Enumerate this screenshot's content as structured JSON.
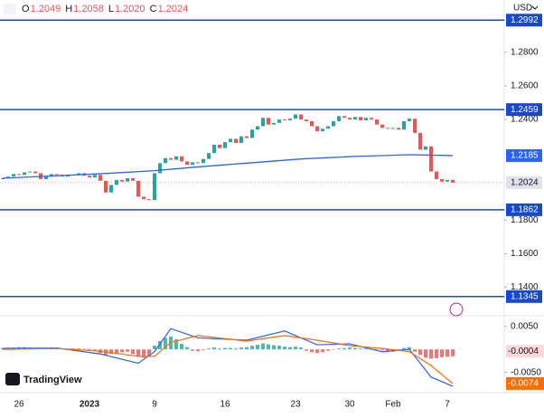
{
  "header": {
    "ohlc": [
      {
        "key": "O",
        "value": "1.2049"
      },
      {
        "key": "H",
        "value": "1.2058"
      },
      {
        "key": "L",
        "value": "1.2020"
      },
      {
        "key": "C",
        "value": "1.2024"
      }
    ],
    "currency": "USD",
    "logo": "TradingView"
  },
  "chart_data": {
    "type": "candlestick",
    "up_color": "#26a69a",
    "down_color": "#ef5350",
    "categories": [
      null,
      null,
      null,
      "26",
      null,
      null,
      null,
      null,
      null,
      null,
      null,
      null,
      null,
      null,
      null,
      null,
      "2023",
      null,
      null,
      null,
      null,
      null,
      null,
      null,
      null,
      null,
      null,
      null,
      "9",
      null,
      null,
      null,
      null,
      null,
      null,
      null,
      null,
      null,
      null,
      null,
      null,
      "16",
      null,
      null,
      null,
      null,
      null,
      null,
      null,
      null,
      null,
      null,
      null,
      null,
      "23",
      null,
      null,
      null,
      null,
      null,
      null,
      null,
      null,
      null,
      "30",
      null,
      null,
      null,
      null,
      null,
      null,
      null,
      "Feb",
      null,
      null,
      null,
      null,
      null,
      null,
      null,
      null,
      null,
      "7",
      null
    ],
    "closes": [
      1.205,
      1.206,
      1.2075,
      1.207,
      1.2085,
      1.209,
      1.208,
      1.2045,
      1.206,
      1.2075,
      1.207,
      1.206,
      1.2072,
      1.2068,
      1.208,
      1.2065,
      1.2055,
      1.207,
      1.2035,
      1.1965,
      1.201,
      1.204,
      1.203,
      1.205,
      1.2035,
      1.194,
      1.1925,
      1.192,
      1.208,
      1.214,
      1.217,
      1.216,
      1.218,
      1.215,
      1.213,
      1.2145,
      1.214,
      1.2165,
      1.22,
      1.225,
      1.223,
      1.2265,
      1.2285,
      1.226,
      1.23,
      1.229,
      1.234,
      1.236,
      1.241,
      1.237,
      1.238,
      1.24,
      1.2395,
      1.2405,
      1.243,
      1.24,
      1.239,
      1.236,
      1.233,
      1.2345,
      1.236,
      1.239,
      1.242,
      1.241,
      1.24,
      1.2415,
      1.2395,
      1.241,
      1.24,
      1.237,
      1.235,
      1.2345,
      1.235,
      1.234,
      1.239,
      1.2405,
      1.232,
      1.222,
      1.224,
      1.209,
      1.2045,
      1.203,
      1.204,
      1.2024
    ],
    "ylim": [
      1.1236,
      1.3112
    ],
    "yticks": [
      {
        "value": 1.28,
        "label": "1.2800"
      },
      {
        "value": 1.26,
        "label": "1.2600"
      },
      {
        "value": 1.24,
        "label": "1.2400"
      },
      {
        "value": 1.18,
        "label": "1.1800"
      },
      {
        "value": 1.16,
        "label": "1.1600"
      },
      {
        "value": 1.14,
        "label": "1.1400"
      }
    ],
    "levels": {
      "color": "#1848cc",
      "values": [
        {
          "value": 1.2992,
          "label": "1.2992"
        },
        {
          "value": 1.2459,
          "label": "1.2459"
        },
        {
          "value": 1.1862,
          "label": "1.1862"
        },
        {
          "value": 1.1345,
          "label": "1.1345"
        }
      ]
    },
    "last_price": {
      "value": 1.2024,
      "label": "1.2024"
    },
    "ma": {
      "color": "#2962ff",
      "x": [
        0,
        10,
        20,
        28,
        35,
        45,
        55,
        65,
        75,
        83
      ],
      "values": [
        1.205,
        1.2065,
        1.208,
        1.2095,
        1.2115,
        1.214,
        1.2165,
        1.218,
        1.219,
        1.2185
      ],
      "last": {
        "value": 1.2185,
        "label": "1.2185"
      }
    },
    "macd": {
      "ylim": [
        -0.009,
        0.0071
      ],
      "yticks": [
        {
          "value": 0.005,
          "label": "0.0050"
        },
        {
          "value": -0.005,
          "label": "-0.0050"
        }
      ],
      "histogram": [
        0.0003,
        0.0004,
        0.0004,
        0.0005,
        0.0005,
        0.0004,
        0.0003,
        0.0002,
        0.0003,
        0.0004,
        0.0003,
        0.0001,
        0.0001,
        0.0002,
        0.0002,
        0.0001,
        -0.0002,
        -0.0004,
        -0.0008,
        -0.0012,
        -0.001,
        -0.0008,
        -0.0006,
        -0.0005,
        -0.001,
        -0.0016,
        -0.0018,
        -0.0015,
        0.0008,
        0.0018,
        0.0025,
        0.0028,
        0.0022,
        0.0012,
        0.0005,
        -0.0003,
        -0.0004,
        -0.0002,
        0.0002,
        0.0004,
        0.0002,
        0.0003,
        0.0003,
        0.0002,
        0.0004,
        0.0005,
        0.0008,
        0.001,
        0.0013,
        0.0011,
        0.0009,
        0.0008,
        0.0006,
        0.0005,
        0.0006,
        0.0004,
        -0.0003,
        -0.0006,
        -0.0008,
        -0.0006,
        -0.0003,
        -0.0001,
        0.0002,
        0.0003,
        0.0004,
        0.0003,
        0.0002,
        0.0002,
        0.0001,
        -0.0001,
        -0.0002,
        -0.0004,
        -0.0005,
        -0.0003,
        0.0003,
        0.0005,
        -0.0005,
        -0.0012,
        -0.0018,
        -0.002,
        -0.0019,
        -0.0017,
        -0.0016,
        -0.0015
      ],
      "line": {
        "color": "#2962ff",
        "x": [
          0,
          10,
          18,
          25,
          28,
          31,
          36,
          45,
          52,
          58,
          64,
          70,
          75,
          79,
          83
        ],
        "values": [
          0.0002,
          0.0003,
          -0.001,
          -0.003,
          -0.0005,
          0.0045,
          0.0025,
          0.002,
          0.004,
          0.001,
          0.0012,
          -0.0005,
          0.0,
          -0.006,
          -0.008
        ]
      },
      "signal": {
        "color": "#ff6d00",
        "x": [
          0,
          10,
          18,
          25,
          28,
          31,
          36,
          45,
          52,
          58,
          64,
          70,
          75,
          79,
          83
        ],
        "values": [
          0.0,
          0.0002,
          -0.0004,
          -0.0015,
          -0.0015,
          0.0015,
          0.003,
          0.0018,
          0.003,
          0.002,
          0.0008,
          0.0002,
          -0.0005,
          -0.0035,
          -0.0074
        ]
      },
      "labels": [
        {
          "value": -0.0004,
          "label": "-0.0004"
        },
        {
          "value": -0.0074,
          "label": "-0.0074"
        }
      ]
    }
  }
}
